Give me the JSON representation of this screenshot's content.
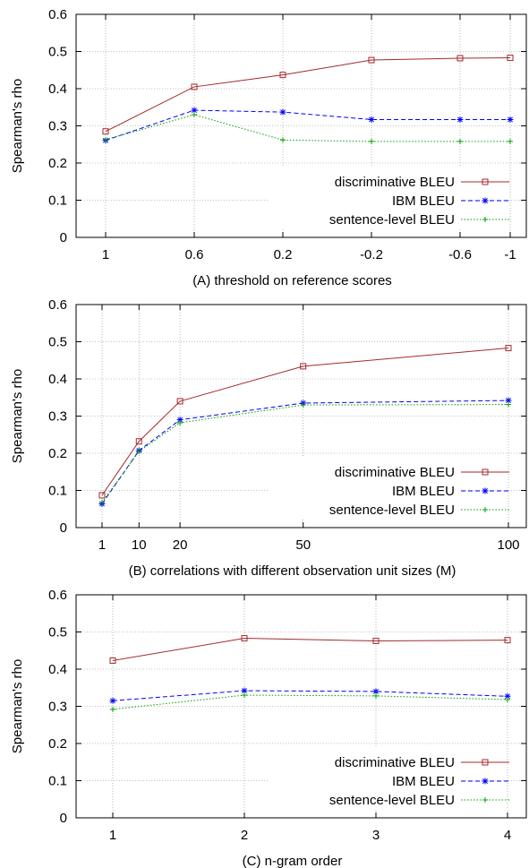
{
  "chart_data": [
    {
      "type": "line",
      "title": "",
      "xlabel": "(A) threshold on reference scores",
      "ylabel": "Spearman's rho",
      "x_scale": "categorical",
      "categories": [
        "1",
        "0.6",
        "0.2",
        "-0.2",
        "-0.6",
        "-1"
      ],
      "ylim": [
        0,
        0.6
      ],
      "yticks": [
        "0",
        "0.1",
        "0.2",
        "0.3",
        "0.4",
        "0.5",
        "0.6"
      ],
      "grid": true,
      "legend_position": "bottom-right",
      "series": [
        {
          "name": "discriminative BLEU",
          "color": "#a52a2a",
          "marker": "square",
          "dash": "solid",
          "values": [
            0.285,
            0.405,
            0.437,
            0.477,
            0.482,
            0.483
          ]
        },
        {
          "name": "IBM BLEU",
          "color": "#0000ff",
          "marker": "star",
          "dash": "dashed",
          "values": [
            0.261,
            0.342,
            0.337,
            0.317,
            0.317,
            0.317
          ]
        },
        {
          "name": "sentence-level BLEU",
          "color": "#00a000",
          "marker": "plus",
          "dash": "dotted",
          "values": [
            0.263,
            0.33,
            0.262,
            0.258,
            0.258,
            0.258
          ]
        }
      ]
    },
    {
      "type": "line",
      "title": "",
      "xlabel": "(B) correlations with different observation unit sizes (M)",
      "ylabel": "Spearman's rho",
      "x_scale": "linear",
      "x": [
        1,
        10,
        20,
        50,
        100
      ],
      "xticks": [
        "1",
        "10",
        "20",
        "50",
        "100"
      ],
      "ylim": [
        0,
        0.6
      ],
      "yticks": [
        "0",
        "0.1",
        "0.2",
        "0.3",
        "0.4",
        "0.5",
        "0.6"
      ],
      "grid": true,
      "legend_position": "bottom-right",
      "series": [
        {
          "name": "discriminative BLEU",
          "color": "#a52a2a",
          "marker": "square",
          "dash": "solid",
          "values": [
            0.087,
            0.232,
            0.34,
            0.434,
            0.483
          ]
        },
        {
          "name": "IBM BLEU",
          "color": "#0000ff",
          "marker": "star",
          "dash": "dashed",
          "values": [
            0.064,
            0.207,
            0.29,
            0.335,
            0.342
          ]
        },
        {
          "name": "sentence-level BLEU",
          "color": "#00a000",
          "marker": "plus",
          "dash": "dotted",
          "values": [
            0.068,
            0.205,
            0.282,
            0.33,
            0.331
          ]
        }
      ]
    },
    {
      "type": "line",
      "title": "",
      "xlabel": "(C) n-gram order",
      "ylabel": "Spearman's rho",
      "x_scale": "categorical",
      "categories": [
        "1",
        "2",
        "3",
        "4"
      ],
      "ylim": [
        0,
        0.6
      ],
      "yticks": [
        "0",
        "0.1",
        "0.2",
        "0.3",
        "0.4",
        "0.5",
        "0.6"
      ],
      "grid": true,
      "legend_position": "bottom-right",
      "series": [
        {
          "name": "discriminative BLEU",
          "color": "#a52a2a",
          "marker": "square",
          "dash": "solid",
          "values": [
            0.423,
            0.483,
            0.476,
            0.478
          ]
        },
        {
          "name": "IBM BLEU",
          "color": "#0000ff",
          "marker": "star",
          "dash": "dashed",
          "values": [
            0.315,
            0.342,
            0.34,
            0.327
          ]
        },
        {
          "name": "sentence-level BLEU",
          "color": "#00a000",
          "marker": "plus",
          "dash": "dotted",
          "values": [
            0.292,
            0.33,
            0.328,
            0.318
          ]
        }
      ]
    }
  ]
}
